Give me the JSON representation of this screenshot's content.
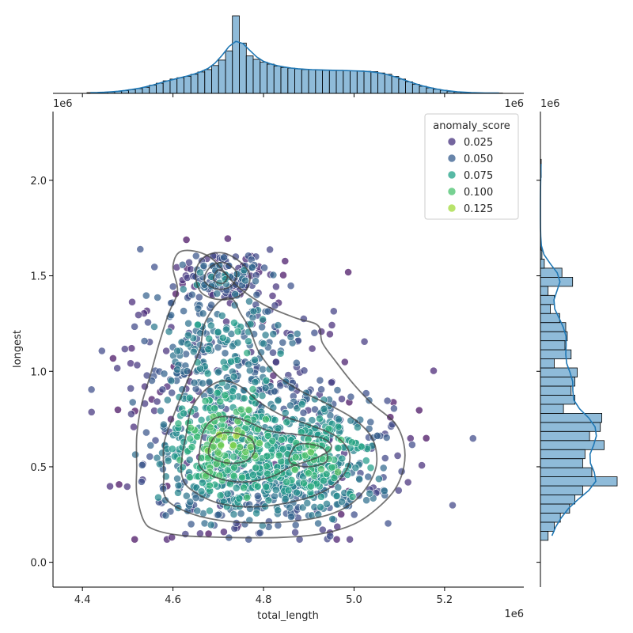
{
  "chart_data": {
    "type": "scatter",
    "title": "",
    "xlabel": "total_length",
    "ylabel": "longest",
    "x_offset_label": "1e6",
    "y_offset_label": "1e6",
    "top_offset_label_left": "1e6",
    "top_offset_label_right": "1e6",
    "right_offset_label": "1e6",
    "xlim": [
      4.335,
      5.375
    ],
    "ylim": [
      -0.13,
      2.36
    ],
    "x_ticks": [
      "4.4",
      "4.6",
      "4.8",
      "5.0",
      "5.2"
    ],
    "x_tick_values": [
      4.4,
      4.6,
      4.8,
      5.0,
      5.2
    ],
    "y_ticks": [
      "0.0",
      "0.5",
      "1.0",
      "1.5",
      "2.0"
    ],
    "y_tick_values": [
      0.0,
      0.5,
      1.0,
      1.5,
      2.0
    ],
    "legend": {
      "title": "anomaly_score",
      "placement": "top-right",
      "entries": [
        {
          "label": "0.025",
          "color": "#46327e"
        },
        {
          "label": "0.050",
          "color": "#365c8d"
        },
        {
          "label": "0.075",
          "color": "#1fa187"
        },
        {
          "label": "0.100",
          "color": "#4ac16d"
        },
        {
          "label": "0.125",
          "color": "#a0da39"
        }
      ]
    },
    "colormap": "viridis",
    "color_range": [
      0.0,
      0.14
    ],
    "marginal_x_histogram": {
      "bin_edges_start": 4.41,
      "bin_width": 0.0153,
      "counts": [
        2,
        2,
        3,
        4,
        6,
        8,
        11,
        14,
        18,
        24,
        30,
        37,
        42,
        46,
        50,
        56,
        63,
        70,
        82,
        98,
        125,
        228,
        148,
        110,
        100,
        92,
        86,
        80,
        76,
        74,
        72,
        70,
        70,
        69,
        68,
        68,
        68,
        67,
        66,
        66,
        65,
        64,
        60,
        56,
        50,
        42,
        34,
        27,
        21,
        16,
        12,
        9,
        6,
        4,
        3,
        2,
        1,
        1,
        1,
        1
      ],
      "kde_peak_x": 4.71,
      "color": "#1f77b4"
    },
    "marginal_y_histogram": {
      "bin_edges_start": 0.115,
      "bin_width": 0.0475,
      "counts": [
        10,
        18,
        26,
        38,
        45,
        55,
        100,
        67,
        55,
        58,
        83,
        64,
        78,
        80,
        30,
        45,
        40,
        45,
        48,
        18,
        40,
        32,
        35,
        33,
        25,
        13,
        18,
        10,
        42,
        28,
        5,
        2,
        1,
        0,
        0,
        0,
        0,
        0,
        0,
        0,
        1,
        1
      ],
      "color": "#1f77b4"
    },
    "density_contours": [
      {
        "level": 1,
        "points": [
          [
            4.535,
            0.22
          ],
          [
            4.56,
            0.17
          ],
          [
            4.62,
            0.14
          ],
          [
            4.72,
            0.13
          ],
          [
            4.84,
            0.13
          ],
          [
            4.93,
            0.15
          ],
          [
            5.0,
            0.2
          ],
          [
            5.05,
            0.28
          ],
          [
            5.09,
            0.38
          ],
          [
            5.11,
            0.5
          ],
          [
            5.11,
            0.62
          ],
          [
            5.09,
            0.73
          ],
          [
            5.04,
            0.83
          ],
          [
            5.0,
            0.93
          ],
          [
            4.96,
            1.05
          ],
          [
            4.93,
            1.15
          ],
          [
            4.92,
            1.24
          ],
          [
            4.87,
            1.28
          ],
          [
            4.8,
            1.35
          ],
          [
            4.74,
            1.45
          ],
          [
            4.68,
            1.6
          ],
          [
            4.62,
            1.63
          ],
          [
            4.6,
            1.55
          ],
          [
            4.61,
            1.42
          ],
          [
            4.59,
            1.3
          ],
          [
            4.57,
            1.15
          ],
          [
            4.55,
            0.98
          ],
          [
            4.53,
            0.82
          ],
          [
            4.52,
            0.66
          ],
          [
            4.52,
            0.5
          ],
          [
            4.52,
            0.36
          ]
        ]
      },
      {
        "level": 2,
        "points": [
          [
            4.6,
            0.3
          ],
          [
            4.66,
            0.24
          ],
          [
            4.74,
            0.21
          ],
          [
            4.84,
            0.21
          ],
          [
            4.93,
            0.24
          ],
          [
            4.99,
            0.3
          ],
          [
            5.03,
            0.4
          ],
          [
            5.05,
            0.52
          ],
          [
            5.04,
            0.65
          ],
          [
            5.0,
            0.75
          ],
          [
            4.94,
            0.83
          ],
          [
            4.88,
            0.9
          ],
          [
            4.83,
            0.98
          ],
          [
            4.79,
            1.1
          ],
          [
            4.77,
            1.22
          ],
          [
            4.75,
            1.3
          ],
          [
            4.73,
            1.38
          ],
          [
            4.7,
            1.36
          ],
          [
            4.67,
            1.25
          ],
          [
            4.66,
            1.12
          ],
          [
            4.64,
            1.0
          ],
          [
            4.62,
            0.88
          ],
          [
            4.6,
            0.76
          ],
          [
            4.58,
            0.62
          ],
          [
            4.58,
            0.46
          ],
          [
            4.58,
            0.36
          ]
        ]
      },
      {
        "level": 3,
        "points": [
          [
            4.64,
            0.38
          ],
          [
            4.7,
            0.31
          ],
          [
            4.78,
            0.29
          ],
          [
            4.87,
            0.32
          ],
          [
            4.94,
            0.38
          ],
          [
            4.98,
            0.47
          ],
          [
            4.99,
            0.57
          ],
          [
            4.96,
            0.66
          ],
          [
            4.9,
            0.72
          ],
          [
            4.84,
            0.77
          ],
          [
            4.79,
            0.84
          ],
          [
            4.75,
            0.92
          ],
          [
            4.71,
            0.95
          ],
          [
            4.67,
            0.9
          ],
          [
            4.64,
            0.8
          ],
          [
            4.63,
            0.68
          ],
          [
            4.62,
            0.55
          ],
          [
            4.62,
            0.45
          ]
        ]
      },
      {
        "level": 4,
        "points": [
          [
            4.66,
            0.5
          ],
          [
            4.7,
            0.44
          ],
          [
            4.76,
            0.42
          ],
          [
            4.82,
            0.45
          ],
          [
            4.86,
            0.5
          ],
          [
            4.92,
            0.55
          ],
          [
            4.95,
            0.6
          ],
          [
            4.93,
            0.65
          ],
          [
            4.87,
            0.67
          ],
          [
            4.81,
            0.69
          ],
          [
            4.75,
            0.75
          ],
          [
            4.7,
            0.76
          ],
          [
            4.67,
            0.7
          ],
          [
            4.66,
            0.6
          ]
        ]
      },
      {
        "level": 5,
        "points": [
          [
            4.68,
            0.56
          ],
          [
            4.72,
            0.52
          ],
          [
            4.76,
            0.53
          ],
          [
            4.78,
            0.58
          ],
          [
            4.77,
            0.65
          ],
          [
            4.72,
            0.68
          ],
          [
            4.69,
            0.65
          ]
        ]
      },
      {
        "level": 6,
        "points": [
          [
            4.86,
            0.52
          ],
          [
            4.9,
            0.5
          ],
          [
            4.94,
            0.53
          ],
          [
            4.93,
            0.6
          ],
          [
            4.88,
            0.62
          ],
          [
            4.86,
            0.57
          ]
        ]
      },
      {
        "level": 7,
        "points": [
          [
            4.66,
            1.42
          ],
          [
            4.69,
            1.38
          ],
          [
            4.73,
            1.38
          ],
          [
            4.76,
            1.42
          ],
          [
            4.77,
            1.5
          ],
          [
            4.75,
            1.57
          ],
          [
            4.71,
            1.62
          ],
          [
            4.67,
            1.6
          ],
          [
            4.65,
            1.52
          ]
        ]
      },
      {
        "level": 8,
        "points": [
          [
            4.67,
            1.47
          ],
          [
            4.7,
            1.43
          ],
          [
            4.73,
            1.45
          ],
          [
            4.74,
            1.52
          ],
          [
            4.71,
            1.57
          ],
          [
            4.68,
            1.54
          ]
        ]
      },
      {
        "level": 9,
        "points": [
          [
            4.69,
            1.48
          ],
          [
            4.71,
            1.46
          ],
          [
            4.72,
            1.5
          ],
          [
            4.7,
            1.53
          ]
        ]
      }
    ]
  }
}
